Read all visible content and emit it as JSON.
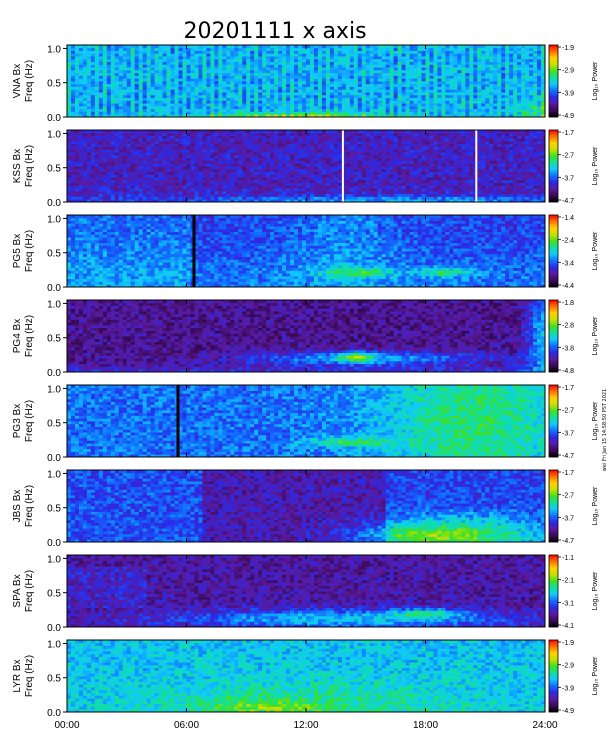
{
  "figure": {
    "title": "20201111  x axis",
    "side_note": "wei Fri Jan 15 14:58:50 PST 2021"
  },
  "chart_data": [
    {
      "type": "heatmap",
      "station": "VNA",
      "ylabel": "VNA Bx",
      "ylabel2": "Freq (Hz)",
      "cbar_label": "Log₁₀ Power",
      "cbar_ticks": [
        "-1.9",
        "-2.9",
        "-3.9",
        "-4.9"
      ],
      "ylim": [
        0,
        1.05
      ],
      "yticks": [
        "0.0",
        "0.5",
        "1.0"
      ],
      "xlim": [
        0,
        24
      ],
      "style": "vna"
    },
    {
      "type": "heatmap",
      "station": "KSS",
      "ylabel": "KSS Bx",
      "ylabel2": "Freq (Hz)",
      "cbar_label": "Log₁₀ Power",
      "cbar_ticks": [
        "-1.7",
        "-2.7",
        "-3.7",
        "-4.7"
      ],
      "ylim": [
        0,
        1.05
      ],
      "yticks": [
        "0.0",
        "0.5",
        "1.0"
      ],
      "xlim": [
        0,
        24
      ],
      "style": "kss",
      "gaps": [
        13.8,
        20.5
      ]
    },
    {
      "type": "heatmap",
      "station": "PG5",
      "ylabel": "PG5 Bx",
      "ylabel2": "Freq (Hz)",
      "cbar_label": "Log₁₀ Power",
      "cbar_ticks": [
        "-1.4",
        "-2.4",
        "-3.4",
        "-4.4"
      ],
      "ylim": [
        0,
        1.05
      ],
      "yticks": [
        "0.0",
        "0.5",
        "1.0"
      ],
      "xlim": [
        0,
        24
      ],
      "style": "pg5",
      "dark": [
        6.3
      ]
    },
    {
      "type": "heatmap",
      "station": "PG4",
      "ylabel": "PG4 Bx",
      "ylabel2": "Freq (Hz)",
      "cbar_label": "Log₁₀ Power",
      "cbar_ticks": [
        "-1.8",
        "-2.8",
        "-3.8",
        "-4.8"
      ],
      "ylim": [
        0,
        1.05
      ],
      "yticks": [
        "0.0",
        "0.5",
        "1.0"
      ],
      "xlim": [
        0,
        24
      ],
      "style": "pg4"
    },
    {
      "type": "heatmap",
      "station": "PG3",
      "ylabel": "PG3 Bx",
      "ylabel2": "Freq (Hz)",
      "cbar_label": "Log₁₀ Power",
      "cbar_ticks": [
        "-1.7",
        "-2.7",
        "-3.7",
        "-4.7"
      ],
      "ylim": [
        0,
        1.05
      ],
      "yticks": [
        "0.0",
        "0.5",
        "1.0"
      ],
      "xlim": [
        0,
        24
      ],
      "style": "pg3",
      "dark": [
        5.5
      ]
    },
    {
      "type": "heatmap",
      "station": "JBS",
      "ylabel": "JBS Bx",
      "ylabel2": "Freq (Hz)",
      "cbar_label": "Log₁₀ Power",
      "cbar_ticks": [
        "-1.7",
        "-2.7",
        "-3.7",
        "-4.7"
      ],
      "ylim": [
        0,
        1.05
      ],
      "yticks": [
        "0.0",
        "0.5",
        "1.0"
      ],
      "xlim": [
        0,
        24
      ],
      "style": "jbs"
    },
    {
      "type": "heatmap",
      "station": "SPA",
      "ylabel": "SPA Bx",
      "ylabel2": "Freq (Hz)",
      "cbar_label": "Log₁₀ Power",
      "cbar_ticks": [
        "-1.1",
        "-2.1",
        "-3.1",
        "-4.1"
      ],
      "ylim": [
        0,
        1.05
      ],
      "yticks": [
        "0.0",
        "0.5",
        "1.0"
      ],
      "xlim": [
        0,
        24
      ],
      "style": "spa"
    },
    {
      "type": "heatmap",
      "station": "LYR",
      "ylabel": "LYR Bx",
      "ylabel2": "Freq (Hz)",
      "cbar_label": "Log₁₀ Power",
      "cbar_ticks": [
        "-1.9",
        "-2.9",
        "-3.9",
        "-4.9"
      ],
      "ylim": [
        0,
        1.05
      ],
      "yticks": [
        "0.0",
        "0.5",
        "1.0"
      ],
      "xlim": [
        0,
        24
      ],
      "style": "lyr"
    }
  ],
  "xaxis": {
    "ticks": [
      "00:00",
      "06:00",
      "12:00",
      "18:00",
      "24:00"
    ],
    "values": [
      0,
      6,
      12,
      18,
      24
    ]
  },
  "colorscale": [
    "#000000",
    "#3a0a5a",
    "#5a1aa0",
    "#2a2ae8",
    "#1070ff",
    "#10c8ff",
    "#10e0a0",
    "#40e020",
    "#c8e000",
    "#ffd000",
    "#ff7000",
    "#ff0000"
  ]
}
